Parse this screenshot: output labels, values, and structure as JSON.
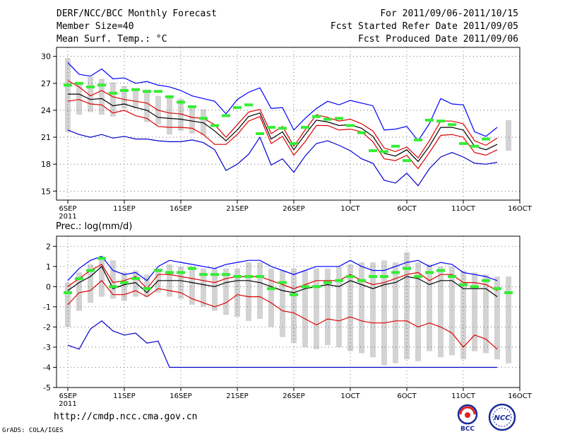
{
  "header": {
    "title": "DERF/NCC/BCC Monthly Forecast",
    "member_size": "Member Size=40",
    "variable": "Mean Surf. Temp.: °C",
    "period": "For 2011/09/06-2011/10/15",
    "fcst_started": "Fcst Started Refer Date 2011/09/05",
    "fcst_produced": "Fcst Produced Date 2011/09/06"
  },
  "footer": {
    "url": "http://cmdp.ncc.cma.gov.cn",
    "grads": "GrADS: COLA/IGES",
    "logo_bcc": "BCC",
    "logo_ncc": "NCC"
  },
  "colors": {
    "max_line": "#0000ff",
    "min_line": "#0000cc",
    "mean_line": "#000000",
    "red_line": "#dd0000",
    "obs_marker": "#33ee33",
    "box": "#d3d3d3"
  },
  "chart_data": [
    {
      "type": "box",
      "title": "Mean Surf. Temp.: °C",
      "x_ticks": [
        "6SEP",
        "11SEP",
        "16SEP",
        "21SEP",
        "26SEP",
        "1OCT",
        "6OCT",
        "11OCT",
        "16OCT"
      ],
      "x_tick_days": [
        0,
        5,
        10,
        15,
        20,
        25,
        30,
        35,
        40
      ],
      "x_year_label": "2011",
      "ylim": [
        14,
        31
      ],
      "y_ticks": [
        15,
        18,
        21,
        24,
        27,
        30
      ],
      "days": [
        0,
        1,
        2,
        3,
        4,
        5,
        6,
        7,
        8,
        9,
        10,
        11,
        12,
        13,
        14,
        15,
        16,
        17,
        18,
        19,
        20,
        21,
        22,
        23,
        24,
        25,
        26,
        27,
        28,
        29,
        30,
        31,
        32,
        33,
        34,
        35,
        36,
        37,
        38,
        39
      ],
      "max": [
        29.3,
        28.0,
        27.8,
        28.6,
        27.5,
        27.6,
        27.0,
        27.2,
        26.8,
        26.6,
        26.2,
        25.6,
        25.3,
        25.0,
        23.6,
        25.2,
        26.0,
        26.5,
        24.2,
        24.3,
        21.8,
        23.1,
        24.2,
        25.0,
        24.6,
        25.1,
        24.8,
        24.5,
        21.8,
        21.9,
        22.2,
        20.6,
        22.5,
        25.3,
        24.7,
        24.6,
        21.6,
        21.1,
        22.1,
        null
      ],
      "upper": [
        27.3,
        26.6,
        25.6,
        26.2,
        25.5,
        25.2,
        25.0,
        24.8,
        24.0,
        23.7,
        23.6,
        23.2,
        23.1,
        22.4,
        21.0,
        22.4,
        23.8,
        24.1,
        21.4,
        22.2,
        20.0,
        21.8,
        23.5,
        23.2,
        22.8,
        23.0,
        22.5,
        21.7,
        19.8,
        19.4,
        19.9,
        18.7,
        20.6,
        22.8,
        22.8,
        22.5,
        20.6,
        20.1,
        20.9,
        null
      ],
      "mean": [
        25.8,
        25.8,
        25.2,
        25.3,
        24.5,
        24.7,
        24.3,
        24.0,
        23.2,
        23.1,
        23.0,
        22.8,
        22.6,
        21.7,
        20.6,
        21.8,
        23.3,
        23.7,
        20.8,
        21.6,
        19.6,
        21.3,
        22.9,
        22.7,
        22.3,
        22.4,
        22.0,
        21.1,
        19.2,
        18.9,
        19.6,
        18.3,
        20.0,
        22.1,
        22.1,
        21.8,
        20.0,
        19.6,
        20.2,
        null
      ],
      "lower": [
        25.0,
        25.2,
        24.7,
        24.6,
        23.7,
        24.0,
        23.4,
        23.1,
        22.2,
        22.1,
        22.1,
        22.0,
        21.3,
        20.2,
        20.2,
        21.3,
        22.8,
        23.3,
        20.3,
        21.1,
        19.0,
        20.5,
        22.3,
        22.3,
        21.8,
        21.9,
        21.6,
        20.5,
        18.6,
        18.4,
        19.0,
        17.5,
        19.3,
        21.2,
        21.3,
        21.0,
        19.3,
        19.0,
        19.6,
        null
      ],
      "min": [
        21.8,
        21.3,
        21.0,
        21.3,
        20.9,
        21.1,
        20.8,
        20.8,
        20.6,
        20.5,
        20.5,
        20.7,
        20.4,
        19.6,
        17.3,
        18.0,
        19.1,
        21.0,
        17.9,
        18.6,
        17.1,
        18.9,
        20.3,
        20.6,
        20.1,
        19.5,
        18.6,
        18.1,
        16.2,
        15.9,
        17.0,
        15.6,
        17.5,
        18.8,
        19.3,
        18.8,
        18.1,
        18.0,
        18.2,
        null
      ],
      "box_low": [
        21.6,
        23.5,
        23.8,
        23.5,
        23.3,
        24.2,
        24.2,
        22.7,
        22.4,
        21.3,
        21.7,
        21.4,
        21.2,
        null,
        null,
        null,
        null,
        null,
        null,
        null,
        null,
        null,
        null,
        null,
        null,
        null,
        null,
        null,
        null,
        null,
        null,
        null,
        null,
        null,
        null,
        null,
        null,
        null,
        null,
        19.5
      ],
      "box_high": [
        29.8,
        27.1,
        27.7,
        27.5,
        27.1,
        26.7,
        26.2,
        26.3,
        25.6,
        25.4,
        25.3,
        24.5,
        24.1,
        null,
        null,
        null,
        null,
        null,
        null,
        null,
        null,
        null,
        null,
        null,
        null,
        null,
        null,
        null,
        null,
        null,
        null,
        null,
        null,
        null,
        null,
        null,
        null,
        null,
        null,
        22.9
      ],
      "obs": [
        26.8,
        27.0,
        26.6,
        26.8,
        25.9,
        26.2,
        26.3,
        26.1,
        26.1,
        25.5,
        24.9,
        24.4,
        23.1,
        22.3,
        23.4,
        24.3,
        24.6,
        21.4,
        22.1,
        22.0,
        20.3,
        22.1,
        23.3,
        23.0,
        23.1,
        22.3,
        21.5,
        19.5,
        19.4,
        20.0,
        18.4,
        20.7,
        22.9,
        22.8,
        22.4,
        20.3,
        20.0,
        20.8,
        null,
        null
      ]
    },
    {
      "type": "box",
      "title": "Prec.: log(mm/d)",
      "x_ticks": [
        "6SEP",
        "11SEP",
        "16SEP",
        "21SEP",
        "26SEP",
        "1OCT",
        "6OCT",
        "11OCT",
        "16OCT"
      ],
      "x_tick_days": [
        0,
        5,
        10,
        15,
        20,
        25,
        30,
        35,
        40
      ],
      "x_year_label": "2011",
      "ylim": [
        -5,
        2.5
      ],
      "y_ticks": [
        -5,
        -4,
        -3,
        -2,
        -1,
        0,
        1,
        2
      ],
      "days": [
        0,
        1,
        2,
        3,
        4,
        5,
        6,
        7,
        8,
        9,
        10,
        11,
        12,
        13,
        14,
        15,
        16,
        17,
        18,
        19,
        20,
        21,
        22,
        23,
        24,
        25,
        26,
        27,
        28,
        29,
        30,
        31,
        32,
        33,
        34,
        35,
        36,
        37,
        38,
        39
      ],
      "max": [
        0.3,
        0.9,
        1.3,
        1.5,
        0.8,
        0.6,
        0.7,
        0.3,
        1.0,
        1.3,
        1.2,
        1.1,
        1.0,
        0.9,
        1.1,
        1.2,
        1.3,
        1.3,
        1.0,
        0.8,
        0.6,
        0.8,
        1.0,
        1.0,
        1.0,
        1.3,
        1.0,
        0.8,
        0.8,
        1.0,
        1.2,
        1.3,
        1.0,
        1.2,
        1.1,
        0.7,
        0.6,
        0.5,
        0.3,
        null
      ],
      "upper": [
        0.0,
        0.4,
        0.8,
        1.1,
        0.2,
        0.3,
        0.5,
        -0.1,
        0.6,
        0.6,
        0.5,
        0.4,
        0.3,
        0.2,
        0.4,
        0.5,
        0.5,
        0.5,
        0.3,
        0.1,
        -0.1,
        0.1,
        0.3,
        0.3,
        0.3,
        0.6,
        0.3,
        0.1,
        0.2,
        0.4,
        0.6,
        0.7,
        0.3,
        0.6,
        0.6,
        0.2,
        0.2,
        0.1,
        -0.2,
        null
      ],
      "mean": [
        -0.2,
        0.2,
        0.5,
        1.0,
        -0.1,
        0.1,
        0.2,
        -0.3,
        0.3,
        0.3,
        0.3,
        0.2,
        0.1,
        0.0,
        0.2,
        0.3,
        0.3,
        0.2,
        0.0,
        -0.2,
        -0.3,
        -0.1,
        0.0,
        0.1,
        0.0,
        0.3,
        0.1,
        -0.1,
        0.1,
        0.2,
        0.5,
        0.4,
        0.1,
        0.3,
        0.3,
        -0.1,
        -0.1,
        -0.1,
        -0.5,
        null
      ],
      "lower": [
        -0.9,
        -0.3,
        -0.2,
        0.3,
        -0.4,
        -0.4,
        -0.2,
        -0.5,
        -0.1,
        -0.2,
        -0.3,
        -0.6,
        -0.8,
        -1.0,
        -0.8,
        -0.4,
        -0.5,
        -0.5,
        -0.8,
        -1.2,
        -1.3,
        -1.6,
        -1.9,
        -1.6,
        -1.7,
        -1.5,
        -1.7,
        -1.8,
        -1.8,
        -1.7,
        -1.7,
        -2.0,
        -1.8,
        -2.0,
        -2.3,
        -3.0,
        -2.4,
        -2.6,
        -3.1,
        null
      ],
      "min": [
        -2.9,
        -3.1,
        -2.1,
        -1.7,
        -2.2,
        -2.4,
        -2.3,
        -2.8,
        -2.7,
        -4.0,
        -4.0,
        -4.0,
        -4.0,
        -4.0,
        -4.0,
        -4.0,
        -4.0,
        -4.0,
        -4.0,
        -4.0,
        -4.0,
        -4.0,
        -4.0,
        -4.0,
        -4.0,
        -4.0,
        -4.0,
        -4.0,
        -4.0,
        -4.0,
        -4.0,
        -4.0,
        -4.0,
        -4.0,
        -4.0,
        -4.0,
        -4.0,
        -4.0,
        -4.0,
        null
      ],
      "box_low": [
        -2.0,
        -1.2,
        -0.8,
        -0.5,
        -0.6,
        -0.7,
        -0.5,
        -0.5,
        -0.3,
        -0.5,
        -0.6,
        -0.9,
        -1.0,
        -1.2,
        -1.4,
        -1.5,
        -1.7,
        -1.6,
        -2.0,
        -2.5,
        -2.8,
        -3.0,
        -3.1,
        -2.9,
        -3.0,
        -3.2,
        -3.3,
        -3.5,
        -3.9,
        -3.8,
        -3.6,
        -3.7,
        -3.2,
        -3.5,
        -3.4,
        -3.6,
        -3.2,
        -3.3,
        -3.6,
        -3.8
      ],
      "box_high": [
        0.2,
        0.7,
        1.1,
        1.5,
        1.3,
        0.7,
        0.8,
        0.6,
        0.9,
        1.1,
        1.0,
        1.0,
        0.9,
        0.9,
        0.9,
        0.9,
        1.2,
        1.2,
        0.9,
        0.8,
        0.9,
        0.8,
        0.9,
        0.9,
        1.0,
        1.1,
        1.2,
        1.2,
        1.3,
        1.2,
        1.7,
        1.2,
        1.1,
        1.0,
        1.0,
        0.8,
        0.7,
        0.6,
        0.5,
        0.5
      ],
      "obs": [
        -0.3,
        0.4,
        0.8,
        1.4,
        0.0,
        0.2,
        0.4,
        -0.1,
        0.8,
        0.7,
        0.7,
        0.9,
        0.6,
        0.6,
        0.6,
        0.5,
        0.5,
        0.5,
        -0.1,
        0.2,
        -0.4,
        0.0,
        0.0,
        0.2,
        0.3,
        0.5,
        0.3,
        0.5,
        0.5,
        0.7,
        0.9,
        0.5,
        0.7,
        0.8,
        0.5,
        0.1,
        0.0,
        0.3,
        -0.1,
        -0.3
      ]
    }
  ]
}
